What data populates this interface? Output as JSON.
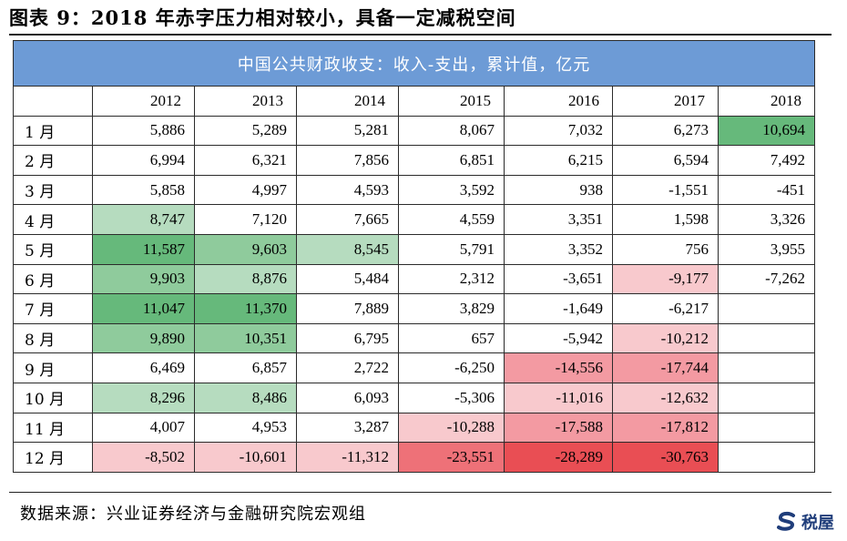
{
  "figure": {
    "title": "图表 9：2018 年赤字压力相对较小，具备一定减税空间",
    "source": "数据来源：兴业证券经济与金融研究院宏观组",
    "watermark": "税屋"
  },
  "table": {
    "header": "中国公共财政收支：收入-支出，累计值，亿元",
    "years": [
      "2012",
      "2013",
      "2014",
      "2015",
      "2016",
      "2017",
      "2018"
    ],
    "rows": [
      {
        "month": "1 月",
        "cells": [
          {
            "v": "5,886",
            "c": ""
          },
          {
            "v": "5,289",
            "c": ""
          },
          {
            "v": "5,281",
            "c": ""
          },
          {
            "v": "8,067",
            "c": ""
          },
          {
            "v": "7,032",
            "c": ""
          },
          {
            "v": "6,273",
            "c": ""
          },
          {
            "v": "10,694",
            "c": "g3"
          }
        ]
      },
      {
        "month": "2 月",
        "cells": [
          {
            "v": "6,994",
            "c": ""
          },
          {
            "v": "6,321",
            "c": ""
          },
          {
            "v": "7,856",
            "c": ""
          },
          {
            "v": "6,851",
            "c": ""
          },
          {
            "v": "6,215",
            "c": ""
          },
          {
            "v": "6,594",
            "c": ""
          },
          {
            "v": "7,492",
            "c": ""
          }
        ]
      },
      {
        "month": "3 月",
        "cells": [
          {
            "v": "5,858",
            "c": ""
          },
          {
            "v": "4,997",
            "c": ""
          },
          {
            "v": "4,593",
            "c": ""
          },
          {
            "v": "3,592",
            "c": ""
          },
          {
            "v": "938",
            "c": ""
          },
          {
            "v": "-1,551",
            "c": ""
          },
          {
            "v": "-451",
            "c": ""
          }
        ]
      },
      {
        "month": "4 月",
        "cells": [
          {
            "v": "8,747",
            "c": "g1"
          },
          {
            "v": "7,120",
            "c": ""
          },
          {
            "v": "7,665",
            "c": ""
          },
          {
            "v": "4,559",
            "c": ""
          },
          {
            "v": "3,351",
            "c": ""
          },
          {
            "v": "1,598",
            "c": ""
          },
          {
            "v": "3,326",
            "c": ""
          }
        ]
      },
      {
        "month": "5 月",
        "cells": [
          {
            "v": "11,587",
            "c": "g3"
          },
          {
            "v": "9,603",
            "c": "g2"
          },
          {
            "v": "8,545",
            "c": "g1"
          },
          {
            "v": "5,791",
            "c": ""
          },
          {
            "v": "3,352",
            "c": ""
          },
          {
            "v": "756",
            "c": ""
          },
          {
            "v": "3,955",
            "c": ""
          }
        ]
      },
      {
        "month": "6 月",
        "cells": [
          {
            "v": "9,903",
            "c": "g2"
          },
          {
            "v": "8,876",
            "c": "g1"
          },
          {
            "v": "5,484",
            "c": ""
          },
          {
            "v": "2,312",
            "c": ""
          },
          {
            "v": "-3,651",
            "c": ""
          },
          {
            "v": "-9,177",
            "c": "r1"
          },
          {
            "v": "-7,262",
            "c": ""
          }
        ]
      },
      {
        "month": "7 月",
        "cells": [
          {
            "v": "11,047",
            "c": "g3"
          },
          {
            "v": "11,370",
            "c": "g3"
          },
          {
            "v": "7,889",
            "c": ""
          },
          {
            "v": "3,829",
            "c": ""
          },
          {
            "v": "-1,649",
            "c": ""
          },
          {
            "v": "-6,217",
            "c": ""
          },
          {
            "v": "",
            "c": ""
          }
        ]
      },
      {
        "month": "8 月",
        "cells": [
          {
            "v": "9,890",
            "c": "g2"
          },
          {
            "v": "10,351",
            "c": "g2"
          },
          {
            "v": "6,795",
            "c": ""
          },
          {
            "v": "657",
            "c": ""
          },
          {
            "v": "-5,942",
            "c": ""
          },
          {
            "v": "-10,212",
            "c": "r1"
          },
          {
            "v": "",
            "c": ""
          }
        ]
      },
      {
        "month": "9 月",
        "cells": [
          {
            "v": "6,469",
            "c": ""
          },
          {
            "v": "6,857",
            "c": ""
          },
          {
            "v": "2,722",
            "c": ""
          },
          {
            "v": "-6,250",
            "c": ""
          },
          {
            "v": "-14,556",
            "c": "r2"
          },
          {
            "v": "-17,744",
            "c": "r2"
          },
          {
            "v": "",
            "c": ""
          }
        ]
      },
      {
        "month": "10 月",
        "cells": [
          {
            "v": "8,296",
            "c": "g1"
          },
          {
            "v": "8,486",
            "c": "g1"
          },
          {
            "v": "6,093",
            "c": ""
          },
          {
            "v": "-5,306",
            "c": ""
          },
          {
            "v": "-11,016",
            "c": "r1"
          },
          {
            "v": "-12,632",
            "c": "r1"
          },
          {
            "v": "",
            "c": ""
          }
        ]
      },
      {
        "month": "11 月",
        "cells": [
          {
            "v": "4,007",
            "c": ""
          },
          {
            "v": "4,953",
            "c": ""
          },
          {
            "v": "3,287",
            "c": ""
          },
          {
            "v": "-10,288",
            "c": "r1"
          },
          {
            "v": "-17,588",
            "c": "r2"
          },
          {
            "v": "-17,812",
            "c": "r2"
          },
          {
            "v": "",
            "c": ""
          }
        ]
      },
      {
        "month": "12 月",
        "cells": [
          {
            "v": "-8,502",
            "c": "r1"
          },
          {
            "v": "-10,601",
            "c": "r1"
          },
          {
            "v": "-11,312",
            "c": "r1"
          },
          {
            "v": "-23,551",
            "c": "r3"
          },
          {
            "v": "-28,289",
            "c": "r4"
          },
          {
            "v": "-30,763",
            "c": "r4"
          },
          {
            "v": "",
            "c": ""
          }
        ]
      }
    ]
  },
  "colors": {
    "header_bg": "#6d9bd6",
    "green_light": "#b6dcbf",
    "green_mid": "#8fcb9c",
    "green_dark": "#66b97b",
    "red_light": "#f8c9cd",
    "red_mid": "#f39aa2",
    "red_strong": "#ee7178",
    "red_deep": "#e94e54"
  }
}
